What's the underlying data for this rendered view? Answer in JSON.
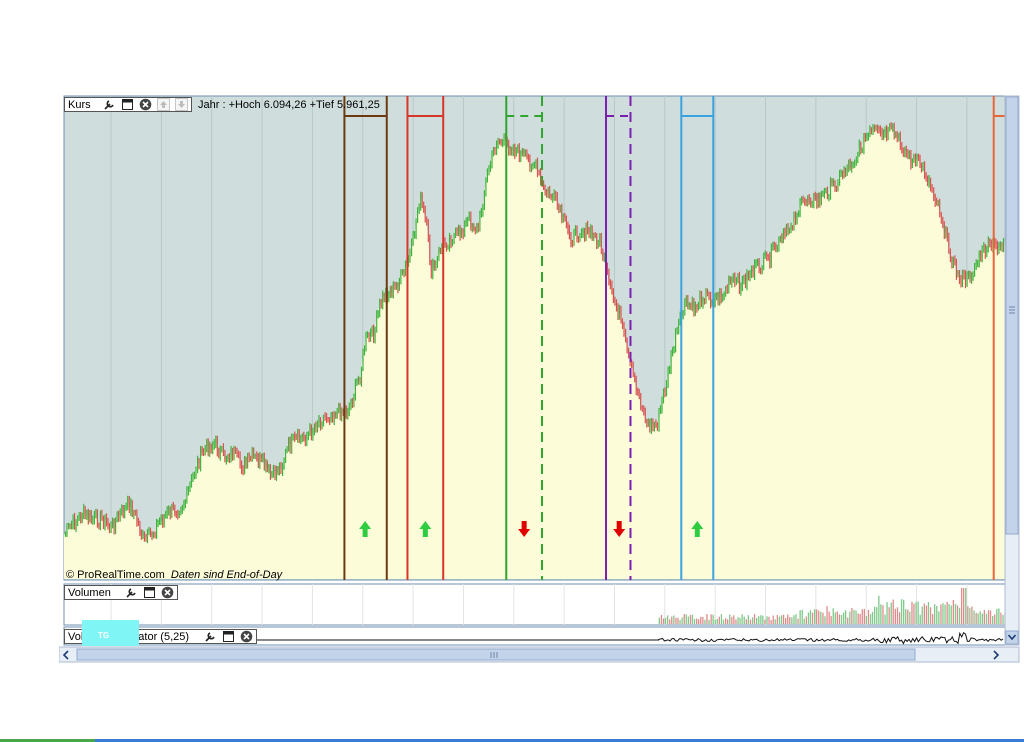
{
  "panels": {
    "price": {
      "title": "Kurs",
      "info": "Jahr : +Hoch 6.094,26 +Tief 5.961,25",
      "credit": "© ProRealTime.com",
      "credit_note": "Daten sind End-of-Day"
    },
    "volume": {
      "title": "Volumen"
    },
    "oscillator": {
      "title": "Volume Oscillator (5,25)",
      "title_visible_prefix": "Vol",
      "title_visible_suffix": "ator (5,25)",
      "overlay_tag": "TG"
    }
  },
  "icons": [
    "wrench-icon",
    "window-icon",
    "close-icon",
    "arrow-up-icon",
    "arrow-down-icon"
  ],
  "colors": {
    "background_upper": "#cfdedd",
    "area_fill": "#fdfcd9",
    "candle_up": "#3fb33f",
    "candle_down": "#d9534f",
    "arrow_up": "#2ecc40",
    "arrow_down": "#e00000"
  },
  "chart_data": {
    "type": "line",
    "title": "",
    "xlabel": "",
    "ylabel": "",
    "price_shape": [
      [
        0.0,
        0.905
      ],
      [
        0.01,
        0.88
      ],
      [
        0.02,
        0.86
      ],
      [
        0.03,
        0.875
      ],
      [
        0.04,
        0.87
      ],
      [
        0.05,
        0.89
      ],
      [
        0.06,
        0.86
      ],
      [
        0.07,
        0.84
      ],
      [
        0.075,
        0.86
      ],
      [
        0.085,
        0.92
      ],
      [
        0.095,
        0.9
      ],
      [
        0.1,
        0.88
      ],
      [
        0.11,
        0.86
      ],
      [
        0.12,
        0.85
      ],
      [
        0.13,
        0.83
      ],
      [
        0.14,
        0.76
      ],
      [
        0.15,
        0.72
      ],
      [
        0.16,
        0.71
      ],
      [
        0.17,
        0.74
      ],
      [
        0.18,
        0.73
      ],
      [
        0.19,
        0.76
      ],
      [
        0.2,
        0.74
      ],
      [
        0.21,
        0.75
      ],
      [
        0.22,
        0.78
      ],
      [
        0.23,
        0.76
      ],
      [
        0.24,
        0.71
      ],
      [
        0.25,
        0.7
      ],
      [
        0.26,
        0.69
      ],
      [
        0.27,
        0.66
      ],
      [
        0.28,
        0.65
      ],
      [
        0.29,
        0.64
      ],
      [
        0.3,
        0.64
      ],
      [
        0.305,
        0.62
      ],
      [
        0.315,
        0.56
      ],
      [
        0.32,
        0.49
      ],
      [
        0.33,
        0.47
      ],
      [
        0.335,
        0.42
      ],
      [
        0.34,
        0.39
      ],
      [
        0.35,
        0.38
      ],
      [
        0.36,
        0.35
      ],
      [
        0.37,
        0.29
      ],
      [
        0.378,
        0.18
      ],
      [
        0.385,
        0.24
      ],
      [
        0.39,
        0.34
      ],
      [
        0.395,
        0.33
      ],
      [
        0.4,
        0.29
      ],
      [
        0.41,
        0.27
      ],
      [
        0.42,
        0.26
      ],
      [
        0.43,
        0.23
      ],
      [
        0.44,
        0.25
      ],
      [
        0.45,
        0.13
      ],
      [
        0.46,
        0.06
      ],
      [
        0.475,
        0.07
      ],
      [
        0.485,
        0.09
      ],
      [
        0.5,
        0.11
      ],
      [
        0.51,
        0.17
      ],
      [
        0.52,
        0.18
      ],
      [
        0.53,
        0.23
      ],
      [
        0.54,
        0.27
      ],
      [
        0.55,
        0.25
      ],
      [
        0.56,
        0.26
      ],
      [
        0.57,
        0.28
      ],
      [
        0.58,
        0.38
      ],
      [
        0.59,
        0.43
      ],
      [
        0.6,
        0.53
      ],
      [
        0.61,
        0.6
      ],
      [
        0.62,
        0.67
      ],
      [
        0.63,
        0.67
      ],
      [
        0.64,
        0.58
      ],
      [
        0.65,
        0.48
      ],
      [
        0.66,
        0.41
      ],
      [
        0.67,
        0.42
      ],
      [
        0.68,
        0.39
      ],
      [
        0.69,
        0.4
      ],
      [
        0.7,
        0.39
      ],
      [
        0.71,
        0.36
      ],
      [
        0.72,
        0.37
      ],
      [
        0.73,
        0.34
      ],
      [
        0.74,
        0.33
      ],
      [
        0.75,
        0.31
      ],
      [
        0.76,
        0.28
      ],
      [
        0.77,
        0.25
      ],
      [
        0.78,
        0.21
      ],
      [
        0.79,
        0.18
      ],
      [
        0.8,
        0.19
      ],
      [
        0.81,
        0.17
      ],
      [
        0.82,
        0.15
      ],
      [
        0.83,
        0.12
      ],
      [
        0.84,
        0.1
      ],
      [
        0.85,
        0.06
      ],
      [
        0.86,
        0.04
      ],
      [
        0.87,
        0.05
      ],
      [
        0.88,
        0.04
      ],
      [
        0.89,
        0.07
      ],
      [
        0.9,
        0.1
      ],
      [
        0.91,
        0.11
      ],
      [
        0.92,
        0.15
      ],
      [
        0.93,
        0.2
      ],
      [
        0.94,
        0.29
      ],
      [
        0.95,
        0.35
      ],
      [
        0.96,
        0.36
      ],
      [
        0.97,
        0.32
      ],
      [
        0.98,
        0.29
      ],
      [
        1.0,
        0.28
      ]
    ],
    "vertical_markers": [
      {
        "pos": 0.298,
        "color": "#6b3a12",
        "style": "solid",
        "pair": 0
      },
      {
        "pos": 0.343,
        "color": "#6b3a12",
        "style": "solid",
        "pair": 0
      },
      {
        "pos": 0.365,
        "color": "#d8352a",
        "style": "solid",
        "pair": 1
      },
      {
        "pos": 0.403,
        "color": "#d8352a",
        "style": "solid",
        "pair": 1
      },
      {
        "pos": 0.47,
        "color": "#2fa52f",
        "style": "solid",
        "pair": 2
      },
      {
        "pos": 0.508,
        "color": "#2fa52f",
        "style": "dashed",
        "pair": 2
      },
      {
        "pos": 0.576,
        "color": "#7a1fb0",
        "style": "solid",
        "pair": 3
      },
      {
        "pos": 0.602,
        "color": "#7a1fb0",
        "style": "dashed",
        "pair": 3
      },
      {
        "pos": 0.656,
        "color": "#3aa2e0",
        "style": "solid",
        "pair": 4
      },
      {
        "pos": 0.69,
        "color": "#3aa2e0",
        "style": "solid",
        "pair": 4
      },
      {
        "pos": 0.988,
        "color": "#e8653a",
        "style": "solid",
        "pair": 5
      }
    ],
    "signals": [
      {
        "pos": 0.32,
        "dir": "up"
      },
      {
        "pos": 0.384,
        "dir": "up"
      },
      {
        "pos": 0.489,
        "dir": "down"
      },
      {
        "pos": 0.59,
        "dir": "down"
      },
      {
        "pos": 0.673,
        "dir": "up"
      }
    ],
    "volume_start": 0.632
  }
}
